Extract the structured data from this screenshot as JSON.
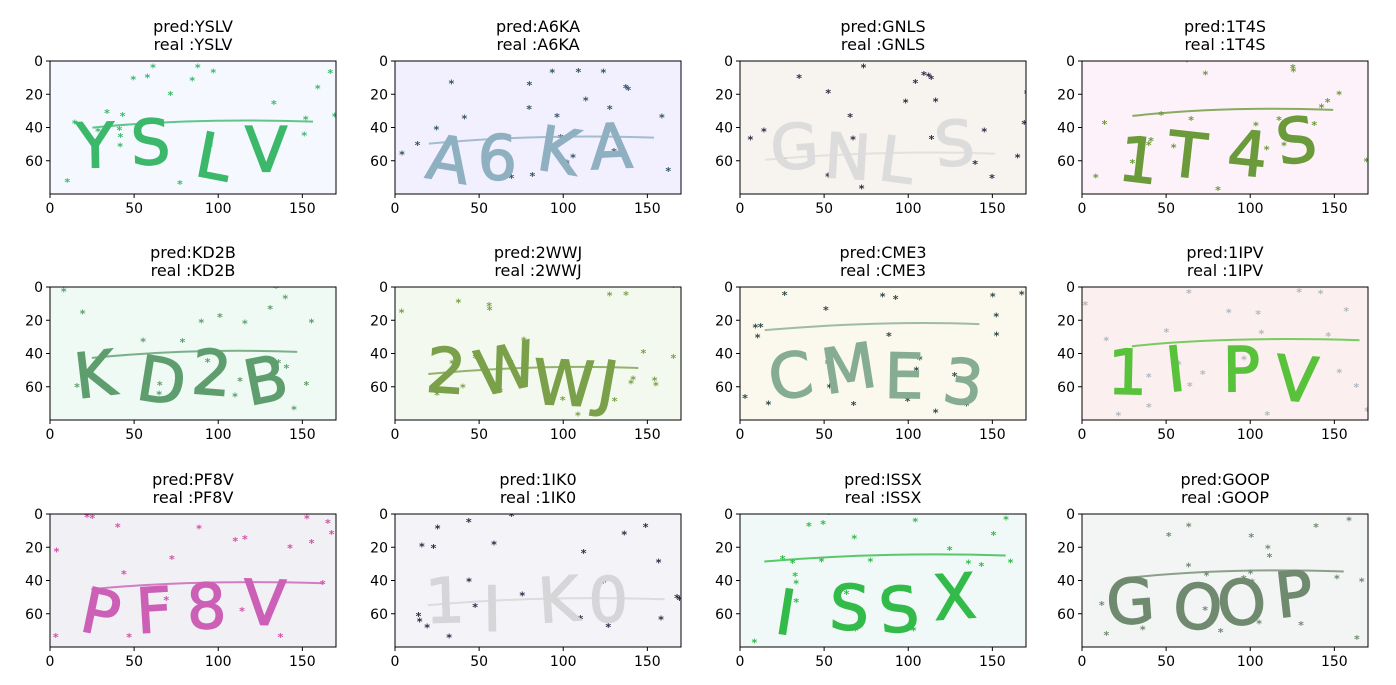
{
  "chart_data": [
    {
      "type": "image",
      "title_pred": "pred:YSLV",
      "title_real": "real :YSLV",
      "text": "YSLV",
      "bg": "#f5f9ff",
      "ink": "#3cb86b",
      "noise": "#3cb86b",
      "x_ticks": [
        0,
        50,
        100,
        150
      ],
      "y_ticks": [
        0,
        20,
        40,
        60
      ],
      "xlim": [
        0,
        170
      ],
      "ylim": [
        0,
        80
      ],
      "grid": false
    },
    {
      "type": "image",
      "title_pred": "pred:A6KA",
      "title_real": "real :A6KA",
      "text": "A6KA",
      "bg": "#f2f0ff",
      "ink": "#8fb0c0",
      "noise": "#335566",
      "x_ticks": [
        0,
        50,
        100,
        150
      ],
      "y_ticks": [
        0,
        20,
        40,
        60
      ],
      "xlim": [
        0,
        170
      ],
      "ylim": [
        0,
        80
      ],
      "grid": false
    },
    {
      "type": "image",
      "title_pred": "pred:GNLS",
      "title_real": "real :GNLS",
      "text": "GNLS",
      "bg": "#f7f3ee",
      "ink": "#dcdcdc",
      "noise": "#2e2a48",
      "x_ticks": [
        0,
        50,
        100,
        150
      ],
      "y_ticks": [
        0,
        20,
        40,
        60
      ],
      "xlim": [
        0,
        170
      ],
      "ylim": [
        0,
        80
      ],
      "grid": false
    },
    {
      "type": "image",
      "title_pred": "pred:1T4S",
      "title_real": "real :1T4S",
      "text": "1T4S",
      "bg": "#fdf1fa",
      "ink": "#6b9a3a",
      "noise": "#6b9a3a",
      "x_ticks": [
        0,
        50,
        100,
        150
      ],
      "y_ticks": [
        0,
        20,
        40,
        60
      ],
      "xlim": [
        0,
        170
      ],
      "ylim": [
        0,
        80
      ],
      "grid": false
    },
    {
      "type": "image",
      "title_pred": "pred:KD2B",
      "title_real": "real :KD2B",
      "text": "KD2B",
      "bg": "#effaf4",
      "ink": "#5e9e6e",
      "noise": "#5e9e6e",
      "x_ticks": [
        0,
        50,
        100,
        150
      ],
      "y_ticks": [
        0,
        20,
        40,
        60
      ],
      "xlim": [
        0,
        170
      ],
      "ylim": [
        0,
        80
      ],
      "grid": false
    },
    {
      "type": "image",
      "title_pred": "pred:2WWJ",
      "title_real": "real :2WWJ",
      "text": "2WWJ",
      "bg": "#f3f9ee",
      "ink": "#7aa04a",
      "noise": "#7aa04a",
      "x_ticks": [
        0,
        50,
        100,
        150
      ],
      "y_ticks": [
        0,
        20,
        40,
        60
      ],
      "xlim": [
        0,
        170
      ],
      "ylim": [
        0,
        80
      ],
      "grid": false
    },
    {
      "type": "image",
      "title_pred": "pred:CME3",
      "title_real": "real :CME3",
      "text": "CME3",
      "bg": "#fbf8ee",
      "ink": "#86ad92",
      "noise": "#2e4a48",
      "x_ticks": [
        0,
        50,
        100,
        150
      ],
      "y_ticks": [
        0,
        20,
        40,
        60
      ],
      "xlim": [
        0,
        170
      ],
      "ylim": [
        0,
        80
      ],
      "grid": false
    },
    {
      "type": "image",
      "title_pred": "pred:1IPV",
      "title_real": "real :1IPV",
      "text": "1IPV",
      "bg": "#fbeff0",
      "ink": "#58c23a",
      "noise": "#b0b8c0",
      "x_ticks": [
        0,
        50,
        100,
        150
      ],
      "y_ticks": [
        0,
        20,
        40,
        60
      ],
      "xlim": [
        0,
        170
      ],
      "ylim": [
        0,
        80
      ],
      "grid": false
    },
    {
      "type": "image",
      "title_pred": "pred:PF8V",
      "title_real": "real :PF8V",
      "text": "PF8V",
      "bg": "#f1f0f4",
      "ink": "#cc5fb6",
      "noise": "#d44fa8",
      "x_ticks": [
        0,
        50,
        100,
        150
      ],
      "y_ticks": [
        0,
        20,
        40,
        60
      ],
      "xlim": [
        0,
        170
      ],
      "ylim": [
        0,
        80
      ],
      "grid": false
    },
    {
      "type": "image",
      "title_pred": "pred:1IK0",
      "title_real": "real :1IK0",
      "text": "1IK0",
      "bg": "#f4f3f7",
      "ink": "#d6d6d8",
      "noise": "#2a2e48",
      "x_ticks": [
        0,
        50,
        100,
        150
      ],
      "y_ticks": [
        0,
        20,
        40,
        60
      ],
      "xlim": [
        0,
        170
      ],
      "ylim": [
        0,
        80
      ],
      "grid": false
    },
    {
      "type": "image",
      "title_pred": "pred:ISSX",
      "title_real": "real :ISSX",
      "text": "ISSX",
      "bg": "#f1f8f8",
      "ink": "#33bb4a",
      "noise": "#33bb4a",
      "x_ticks": [
        0,
        50,
        100,
        150
      ],
      "y_ticks": [
        0,
        20,
        40,
        60
      ],
      "xlim": [
        0,
        170
      ],
      "ylim": [
        0,
        80
      ],
      "grid": false
    },
    {
      "type": "image",
      "title_pred": "pred:GOOP",
      "title_real": "real :GOOP",
      "text": "GOOP",
      "bg": "#f3f5f5",
      "ink": "#708a70",
      "noise": "#708a70",
      "x_ticks": [
        0,
        50,
        100,
        150
      ],
      "y_ticks": [
        0,
        20,
        40,
        60
      ],
      "xlim": [
        0,
        170
      ],
      "ylim": [
        0,
        80
      ],
      "grid": false
    }
  ]
}
